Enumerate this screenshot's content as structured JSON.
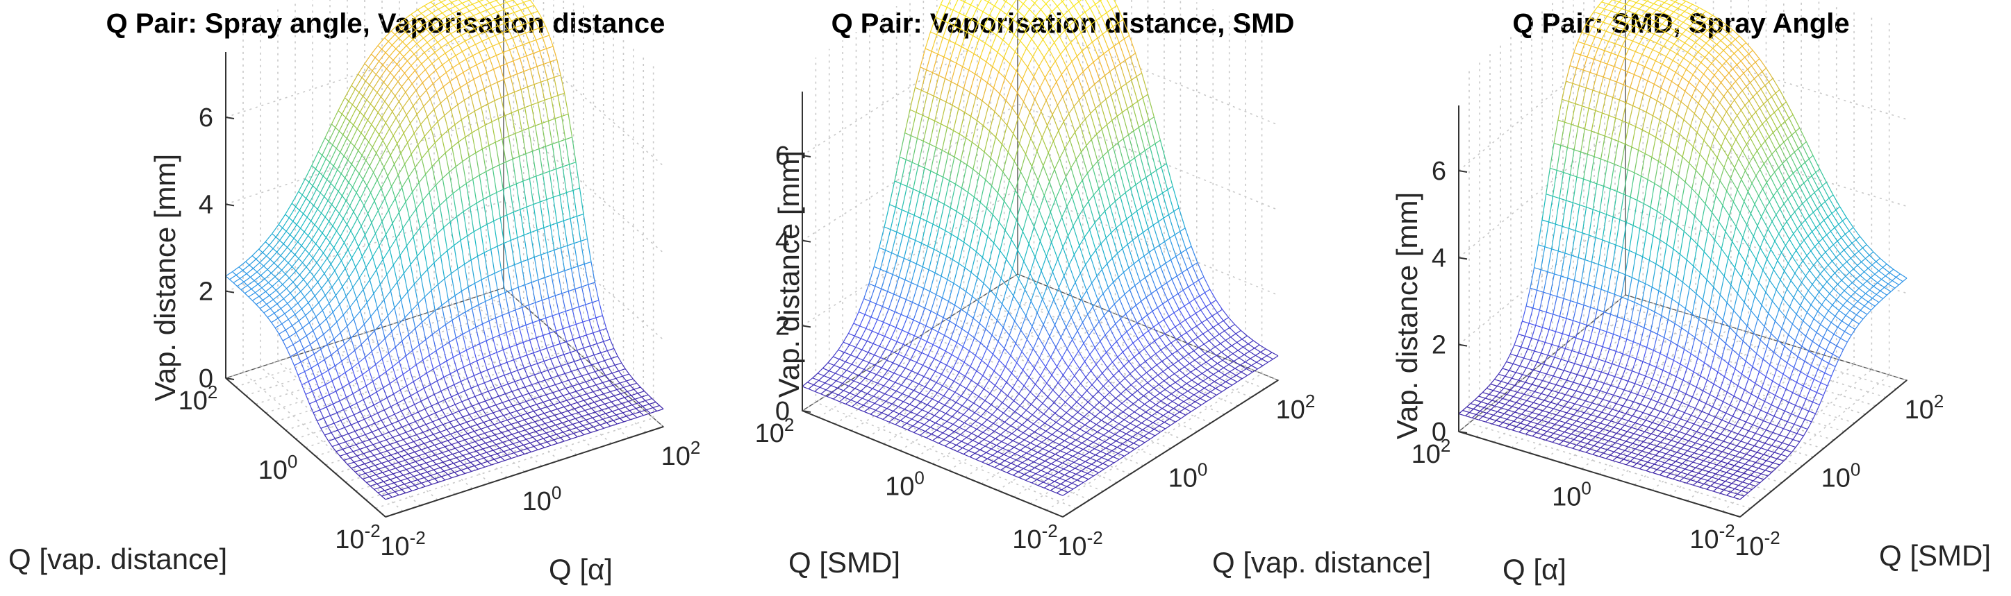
{
  "figure": {
    "colormap": [
      "#3e26a8",
      "#4856f0",
      "#2d96e8",
      "#17b9c3",
      "#43c98c",
      "#a6c740",
      "#f1b534",
      "#f9e721"
    ]
  },
  "chart_data": [
    {
      "type": "surface",
      "title": "Q Pair: Spray angle, Vaporisation distance",
      "xlabel": "Q [α]",
      "ylabel": "Q [vap. distance]",
      "zlabel": "Vap. distance [mm]",
      "x_ticks": [
        "10-2",
        "100",
        "102"
      ],
      "y_ticks": [
        "10-2",
        "100",
        "102"
      ],
      "z_ticks": [
        "0",
        "2",
        "4",
        "6"
      ],
      "x_scale": "log",
      "y_scale": "log",
      "xlim": [
        0.01,
        100
      ],
      "ylim": [
        0.01,
        100
      ],
      "zlim": [
        0,
        7.5
      ],
      "grid": true,
      "surface": {
        "description_values": "vap. distance rises steeply with Q[vap. distance] near 1, ~0.5-1 at low Q, plateau ~7.3 at high Q",
        "z_low": 0.4,
        "z_high": 7.3,
        "transition_center_log10": 0.0,
        "driver": "y"
      }
    },
    {
      "type": "surface",
      "title": "Q Pair: Vaporisation distance, SMD",
      "xlabel": "Q [vap. distance]",
      "ylabel": "Q [SMD]",
      "zlabel": "Vap. distance [mm]",
      "x_ticks": [
        "10-2",
        "100",
        "102"
      ],
      "y_ticks": [
        "10-2",
        "100",
        "102"
      ],
      "z_ticks": [
        "0",
        "2",
        "4",
        "6"
      ],
      "x_scale": "log",
      "y_scale": "log",
      "xlim": [
        0.01,
        100
      ],
      "ylim": [
        0.01,
        100
      ],
      "zlim": [
        0,
        7.5
      ],
      "grid": true,
      "surface": {
        "z_low": 0.5,
        "z_high": 8.0,
        "transition_center_log10": 0.0,
        "driver": "both"
      }
    },
    {
      "type": "surface",
      "title": "Q Pair: SMD, Spray Angle",
      "xlabel": "Q [SMD]",
      "ylabel": "Q [α]",
      "zlabel": "Vap. distance [mm]",
      "x_ticks": [
        "10-2",
        "100",
        "102"
      ],
      "y_ticks": [
        "10-2",
        "100",
        "102"
      ],
      "z_ticks": [
        "0",
        "2",
        "4",
        "6"
      ],
      "x_scale": "log",
      "y_scale": "log",
      "xlim": [
        0.01,
        100
      ],
      "ylim": [
        0.01,
        100
      ],
      "zlim": [
        0,
        7.5
      ],
      "grid": true,
      "surface": {
        "z_low": 0.4,
        "z_high": 7.3,
        "transition_center_log10": 0.0,
        "driver": "x"
      }
    }
  ]
}
